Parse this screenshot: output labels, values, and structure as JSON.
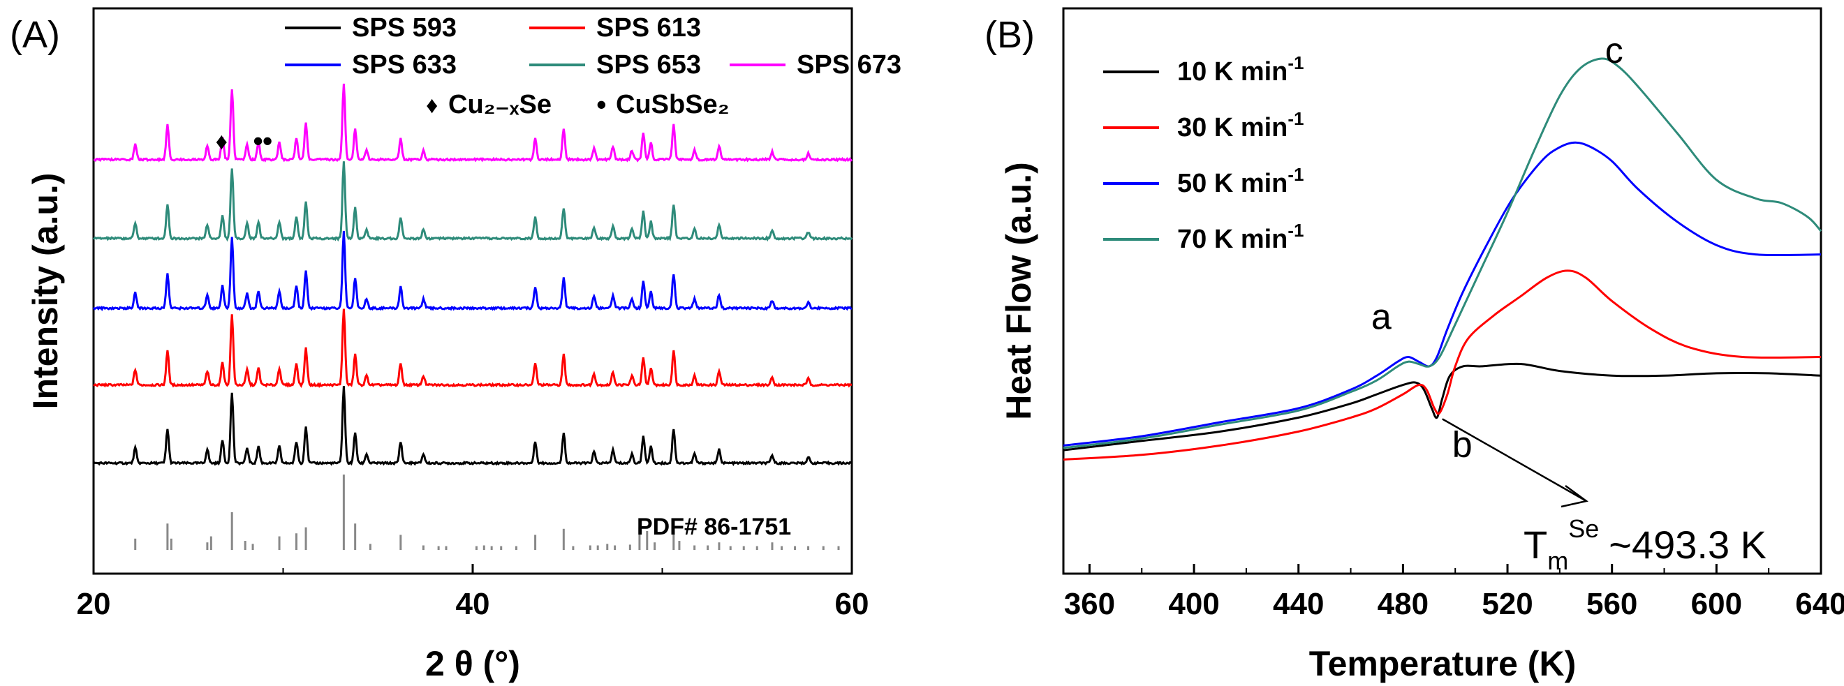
{
  "chart_data": [
    {
      "type": "line",
      "panel_label": "(A)",
      "xlabel": "2 θ (°)",
      "ylabel": "Intensity (a.u.)",
      "xlim": [
        20,
        60
      ],
      "x_ticks": [
        "20",
        "40",
        "60"
      ],
      "legend_position": "top",
      "series": [
        {
          "name": "SPS 593",
          "color": "#000000"
        },
        {
          "name": "SPS 613",
          "color": "#ff0000"
        },
        {
          "name": "SPS 633",
          "color": "#0000ff"
        },
        {
          "name": "SPS 653",
          "color": "#2e8b7a"
        },
        {
          "name": "SPS 673",
          "color": "#ff00ff"
        }
      ],
      "peaks": [
        {
          "x": 22.2,
          "h": 0.2
        },
        {
          "x": 23.9,
          "h": 0.45
        },
        {
          "x": 26.0,
          "h": 0.18
        },
        {
          "x": 26.8,
          "h": 0.3
        },
        {
          "x": 27.3,
          "h": 0.92
        },
        {
          "x": 28.1,
          "h": 0.2
        },
        {
          "x": 28.7,
          "h": 0.22
        },
        {
          "x": 29.8,
          "h": 0.22
        },
        {
          "x": 30.7,
          "h": 0.28
        },
        {
          "x": 31.2,
          "h": 0.48
        },
        {
          "x": 33.2,
          "h": 1.0
        },
        {
          "x": 33.8,
          "h": 0.4
        },
        {
          "x": 34.4,
          "h": 0.12
        },
        {
          "x": 36.2,
          "h": 0.28
        },
        {
          "x": 37.4,
          "h": 0.12
        },
        {
          "x": 43.3,
          "h": 0.28
        },
        {
          "x": 44.8,
          "h": 0.4
        },
        {
          "x": 46.4,
          "h": 0.15
        },
        {
          "x": 47.4,
          "h": 0.17
        },
        {
          "x": 48.4,
          "h": 0.12
        },
        {
          "x": 49.0,
          "h": 0.35
        },
        {
          "x": 49.4,
          "h": 0.22
        },
        {
          "x": 50.6,
          "h": 0.45
        },
        {
          "x": 51.7,
          "h": 0.12
        },
        {
          "x": 53.0,
          "h": 0.18
        },
        {
          "x": 55.8,
          "h": 0.1
        },
        {
          "x": 57.7,
          "h": 0.08
        }
      ],
      "markers": [
        {
          "symbol": "♦",
          "label": "Cu₂₋ₓSe",
          "peak_x": [
            26.8
          ]
        },
        {
          "symbol": "•",
          "label": "CuSbSe₂",
          "peak_x": [
            28.7,
            29.2
          ]
        }
      ],
      "reference": {
        "label": "PDF# 86-1751",
        "lines": [
          {
            "x": 22.2,
            "h": 0.15
          },
          {
            "x": 23.9,
            "h": 0.35
          },
          {
            "x": 24.1,
            "h": 0.15
          },
          {
            "x": 26.0,
            "h": 0.1
          },
          {
            "x": 26.2,
            "h": 0.18
          },
          {
            "x": 27.3,
            "h": 0.5
          },
          {
            "x": 28.0,
            "h": 0.12
          },
          {
            "x": 28.4,
            "h": 0.08
          },
          {
            "x": 29.8,
            "h": 0.18
          },
          {
            "x": 30.7,
            "h": 0.22
          },
          {
            "x": 31.2,
            "h": 0.3
          },
          {
            "x": 33.2,
            "h": 1.0
          },
          {
            "x": 33.8,
            "h": 0.35
          },
          {
            "x": 34.6,
            "h": 0.08
          },
          {
            "x": 36.2,
            "h": 0.2
          },
          {
            "x": 37.4,
            "h": 0.06
          },
          {
            "x": 38.2,
            "h": 0.05
          },
          {
            "x": 38.6,
            "h": 0.05
          },
          {
            "x": 40.2,
            "h": 0.05
          },
          {
            "x": 40.6,
            "h": 0.06
          },
          {
            "x": 41.0,
            "h": 0.05
          },
          {
            "x": 41.5,
            "h": 0.05
          },
          {
            "x": 42.3,
            "h": 0.05
          },
          {
            "x": 43.3,
            "h": 0.2
          },
          {
            "x": 44.8,
            "h": 0.28
          },
          {
            "x": 45.3,
            "h": 0.05
          },
          {
            "x": 46.2,
            "h": 0.06
          },
          {
            "x": 46.6,
            "h": 0.06
          },
          {
            "x": 47.1,
            "h": 0.08
          },
          {
            "x": 47.5,
            "h": 0.06
          },
          {
            "x": 48.3,
            "h": 0.07
          },
          {
            "x": 48.8,
            "h": 0.3
          },
          {
            "x": 49.2,
            "h": 0.25
          },
          {
            "x": 49.6,
            "h": 0.1
          },
          {
            "x": 50.6,
            "h": 0.3
          },
          {
            "x": 50.9,
            "h": 0.12
          },
          {
            "x": 51.7,
            "h": 0.06
          },
          {
            "x": 52.4,
            "h": 0.06
          },
          {
            "x": 53.0,
            "h": 0.1
          },
          {
            "x": 53.6,
            "h": 0.05
          },
          {
            "x": 54.3,
            "h": 0.05
          },
          {
            "x": 55.0,
            "h": 0.05
          },
          {
            "x": 55.8,
            "h": 0.1
          },
          {
            "x": 56.3,
            "h": 0.05
          },
          {
            "x": 57.0,
            "h": 0.05
          },
          {
            "x": 57.7,
            "h": 0.05
          },
          {
            "x": 58.5,
            "h": 0.05
          },
          {
            "x": 59.3,
            "h": 0.05
          }
        ]
      }
    },
    {
      "type": "line",
      "panel_label": "(B)",
      "xlabel": "Temperature (K)",
      "ylabel": "Heat Flow (a.u.)",
      "xlim": [
        350,
        640
      ],
      "ylim": [
        0,
        1
      ],
      "x_ticks": [
        "360",
        "400",
        "440",
        "480",
        "520",
        "560",
        "600",
        "640"
      ],
      "legend_position": "top-left",
      "series": [
        {
          "name": "10 K min",
          "unit_exp": "-1",
          "color": "#000000",
          "x": [
            350,
            380,
            410,
            440,
            460,
            470,
            480,
            485,
            488,
            491,
            493,
            495,
            498,
            503,
            510,
            525,
            540,
            560,
            580,
            600,
            620,
            640
          ],
          "y": [
            0.16,
            0.18,
            0.2,
            0.23,
            0.26,
            0.28,
            0.3,
            0.305,
            0.29,
            0.25,
            0.23,
            0.27,
            0.32,
            0.34,
            0.34,
            0.345,
            0.33,
            0.32,
            0.32,
            0.325,
            0.325,
            0.32
          ]
        },
        {
          "name": "30 K min",
          "unit_exp": "-1",
          "color": "#ff0000",
          "x": [
            350,
            380,
            410,
            440,
            460,
            470,
            480,
            486,
            489,
            492,
            494,
            497,
            500,
            505,
            515,
            525,
            535,
            543,
            550,
            560,
            575,
            590,
            610,
            640
          ],
          "y": [
            0.14,
            0.15,
            0.17,
            0.2,
            0.23,
            0.25,
            0.28,
            0.3,
            0.29,
            0.25,
            0.24,
            0.28,
            0.34,
            0.4,
            0.45,
            0.49,
            0.53,
            0.545,
            0.53,
            0.48,
            0.42,
            0.38,
            0.36,
            0.36
          ]
        },
        {
          "name": "50 K min",
          "unit_exp": "-1",
          "color": "#0000ff",
          "x": [
            350,
            380,
            410,
            440,
            460,
            470,
            478,
            482,
            486,
            490,
            493,
            497,
            503,
            512,
            522,
            533,
            540,
            546,
            552,
            560,
            570,
            585,
            600,
            615,
            640
          ],
          "y": [
            0.17,
            0.19,
            0.22,
            0.25,
            0.29,
            0.32,
            0.35,
            0.36,
            0.35,
            0.34,
            0.36,
            0.42,
            0.5,
            0.6,
            0.7,
            0.78,
            0.81,
            0.82,
            0.81,
            0.78,
            0.72,
            0.65,
            0.6,
            0.58,
            0.58
          ]
        },
        {
          "name": "70 K min",
          "unit_exp": "-1",
          "color": "#2e8b7a",
          "x": [
            350,
            380,
            410,
            440,
            460,
            470,
            478,
            482,
            486,
            490,
            494,
            500,
            510,
            520,
            530,
            540,
            548,
            556,
            562,
            570,
            585,
            600,
            615,
            625,
            635,
            640
          ],
          "y": [
            0.165,
            0.185,
            0.215,
            0.245,
            0.285,
            0.31,
            0.34,
            0.35,
            0.345,
            0.34,
            0.36,
            0.43,
            0.55,
            0.67,
            0.8,
            0.92,
            0.98,
            1.0,
            0.985,
            0.94,
            0.84,
            0.74,
            0.7,
            0.69,
            0.66,
            0.63
          ]
        }
      ],
      "annotations": [
        {
          "text": "a",
          "x": 478
        },
        {
          "text": "b",
          "x": 494
        },
        {
          "text": "c",
          "x": 552
        },
        {
          "text": "T",
          "sub": "m",
          "sup": "Se",
          "value": "~493.3 K"
        }
      ]
    }
  ]
}
